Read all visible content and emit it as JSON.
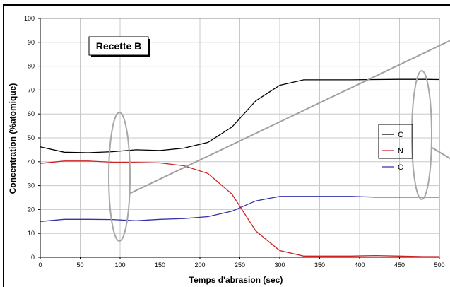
{
  "chart_data": {
    "type": "line",
    "xlabel": "Temps d'abrasion (sec)",
    "ylabel": "Concentration (%atomique)",
    "xlim": [
      0,
      500
    ],
    "ylim": [
      0,
      100
    ],
    "x_ticks": [
      0,
      50,
      100,
      150,
      200,
      250,
      300,
      350,
      400,
      450,
      500
    ],
    "y_ticks": [
      0,
      10,
      20,
      30,
      40,
      50,
      60,
      70,
      80,
      90,
      100
    ],
    "grid": true,
    "legend_position": "right",
    "annotation": "Recette B",
    "series": [
      {
        "name": "C",
        "color": "#000000",
        "x": [
          0,
          30,
          60,
          90,
          120,
          150,
          180,
          210,
          240,
          270,
          300,
          330,
          360,
          390,
          420,
          450,
          480,
          500
        ],
        "values": [
          46.2,
          44.0,
          43.8,
          44.2,
          45.0,
          44.7,
          45.7,
          48.1,
          54.5,
          65.5,
          72.0,
          74.3,
          74.3,
          74.3,
          74.4,
          74.5,
          74.5,
          74.4
        ]
      },
      {
        "name": "N",
        "color": "#cc2222",
        "x": [
          0,
          30,
          60,
          90,
          120,
          150,
          180,
          210,
          240,
          270,
          300,
          330,
          360,
          390,
          420,
          450,
          480,
          500
        ],
        "values": [
          39.3,
          40.3,
          40.3,
          39.8,
          39.7,
          39.5,
          38.3,
          35.1,
          26.5,
          11.0,
          2.8,
          0.5,
          0.5,
          0.5,
          0.7,
          0.5,
          0.3,
          0.3
        ]
      },
      {
        "name": "O",
        "color": "#3333aa",
        "x": [
          0,
          30,
          60,
          90,
          120,
          150,
          180,
          210,
          240,
          270,
          300,
          330,
          360,
          390,
          420,
          450,
          480,
          500
        ],
        "values": [
          15.0,
          15.9,
          15.9,
          15.8,
          15.3,
          15.9,
          16.2,
          17.0,
          19.3,
          23.6,
          25.5,
          25.5,
          25.5,
          25.5,
          25.2,
          25.2,
          25.2,
          25.2
        ]
      }
    ]
  }
}
